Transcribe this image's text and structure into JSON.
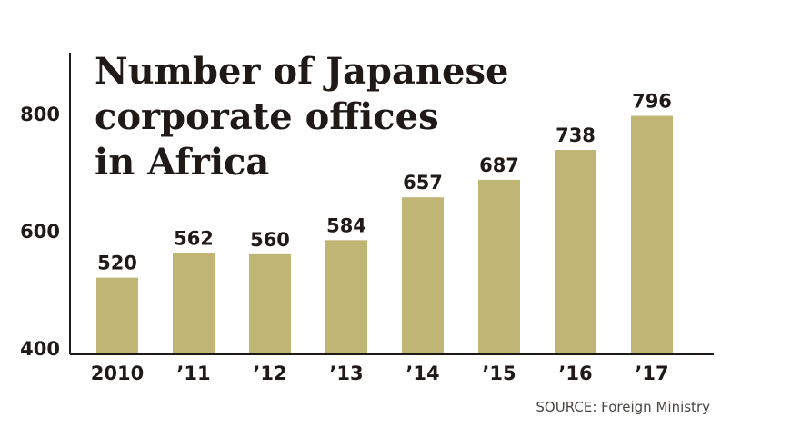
{
  "chart_data": {
    "type": "bar",
    "title_lines": [
      "Number of Japanese",
      "corporate offices",
      "in Africa"
    ],
    "categories": [
      "2010",
      "’11",
      "’12",
      "’13",
      "’14",
      "’15",
      "’16",
      "’17"
    ],
    "values": [
      520,
      562,
      560,
      584,
      657,
      687,
      738,
      796
    ],
    "ylim": [
      400,
      800
    ],
    "yticks": [
      400,
      600,
      800
    ],
    "xlabel": "",
    "ylabel": "",
    "grid": false,
    "legend": "none",
    "bar_color": "#bfb675",
    "source": "SOURCE: Foreign Ministry"
  }
}
